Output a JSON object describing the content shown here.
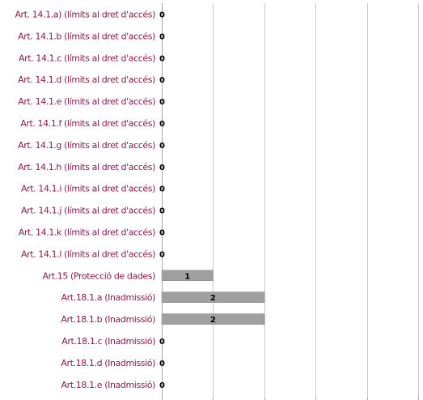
{
  "colors": {
    "label": "#8B1A4B",
    "bar": "#A0A0A0",
    "bar_border": "#8C8C8C",
    "grid": "#C8C8C8",
    "axis": "#A6A6A6",
    "value_text": "#000000",
    "background": "#FFFFFF"
  },
  "chart_data": {
    "type": "bar",
    "orientation": "horizontal",
    "title": "",
    "xlabel": "",
    "ylabel": "",
    "xlim": [
      0,
      5
    ],
    "grid": true,
    "legend": "none",
    "categories": [
      "Art. 14.1.a) (límits al dret d'accés)",
      "Art. 14.1.b (límits al dret d'accés)",
      "Art. 14.1.c (límits al dret d'accés)",
      "Art. 14.1.d (límits al dret d'accés)",
      "Art. 14.1.e (límits al dret d'accés)",
      "Art. 14.1.f (límits al dret d'accés)",
      "Art. 14.1.g (límits al dret d'accés)",
      "Art. 14.1.h (límits al dret d'accés)",
      "Art. 14.1.i (límits al dret d'accés)",
      "Art. 14.1.j (límits al dret d'accés)",
      "Art. 14.1.k (límits al dret d'accés)",
      "Art. 14.1.l (límits al dret d'accés)",
      "Art.15 (Protecció de dades)",
      "Art.18.1.a (Inadmissió)",
      "Art.18.1.b (Inadmissió)",
      "Art.18.1.c (Inadmissió)",
      "Art.18.1.d (Inadmissió)",
      "Art.18.1.e (Inadmissió)"
    ],
    "values": [
      0,
      0,
      0,
      0,
      0,
      0,
      0,
      0,
      0,
      0,
      0,
      0,
      1,
      2,
      2,
      0,
      0,
      0
    ],
    "data_labels": [
      "0",
      "0",
      "0",
      "0",
      "0",
      "0",
      "0",
      "0",
      "0",
      "0",
      "0",
      "0",
      "1",
      "2",
      "2",
      "0",
      "0",
      "0"
    ]
  }
}
